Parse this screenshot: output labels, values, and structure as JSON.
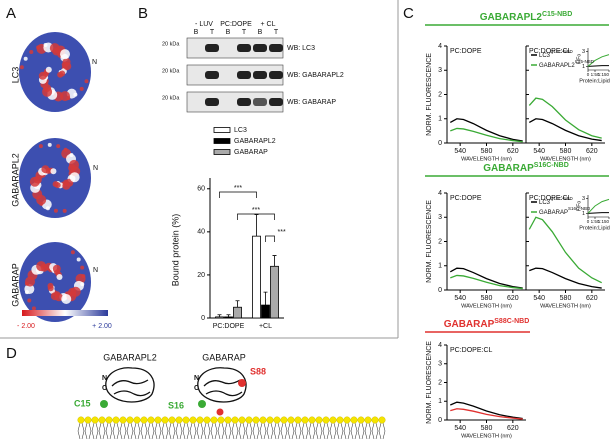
{
  "panel_a": {
    "label": "A",
    "proteins": [
      "LC3",
      "GABARAPL2",
      "GABARAP"
    ],
    "n_labels": [
      "N",
      "N",
      "N"
    ],
    "scale": [
      "- 2.00",
      "+ 2.00"
    ]
  },
  "panel_b": {
    "label": "B",
    "blot": {
      "conditions": [
        "- LUV",
        "PC:DOPE",
        "+ CL"
      ],
      "lanes": [
        "B",
        "T",
        "B",
        "T",
        "B",
        "T"
      ],
      "markers": [
        "20 kDa",
        "20 kDa",
        "20 kDa"
      ],
      "rows": [
        "WB: LC3",
        "WB: GABARAPL2",
        "WB: GABARAP"
      ]
    },
    "chart": {
      "type": "bar",
      "ylabel": "Bound protein (%)",
      "categories": [
        "PC:DOPE",
        "+CL"
      ],
      "series": [
        {
          "name": "LC3",
          "color": "#ffffff",
          "values": [
            0.5,
            38
          ],
          "errors": [
            1,
            10
          ]
        },
        {
          "name": "GABARAPL2",
          "color": "#000000",
          "values": [
            0.5,
            6
          ],
          "errors": [
            1,
            6
          ]
        },
        {
          "name": "GABARAP",
          "color": "#aaaaaa",
          "values": [
            5,
            24
          ],
          "errors": [
            3,
            5
          ]
        }
      ],
      "ylim": [
        0,
        65
      ],
      "yticks": [
        0,
        20,
        40,
        60
      ],
      "significance": [
        "***",
        "***",
        "***"
      ]
    }
  },
  "panel_c": {
    "label": "C",
    "ylabel": "NORM. FLUORESCENCE",
    "xlabel": "WAVELENGTH (nm)",
    "x": [
      525,
      535,
      545,
      560,
      580,
      600,
      620,
      635
    ],
    "xlim": [
      520,
      640
    ],
    "xticks": [
      540,
      580,
      620
    ],
    "ylim": [
      0,
      4
    ],
    "yticks": [
      0,
      1,
      2,
      3,
      4
    ],
    "rows": [
      {
        "title": {
          "name": "GABARAPL2",
          "sup": "C15-NBD"
        },
        "color": "#3aaa35",
        "plots": [
          {
            "condition": "PC:DOPE",
            "series": [
              {
                "color": "#000000",
                "values": [
                  0.85,
                  1.0,
                  0.97,
                  0.8,
                  0.52,
                  0.3,
                  0.15,
                  0.08
                ]
              },
              {
                "color": "#3aaa35",
                "values": [
                  0.5,
                  0.6,
                  0.58,
                  0.48,
                  0.32,
                  0.18,
                  0.1,
                  0.05
                ]
              }
            ]
          },
          {
            "condition": "PC:DOPE:CL",
            "series": [
              {
                "color": "#000000",
                "values": [
                  0.85,
                  1.0,
                  0.97,
                  0.8,
                  0.52,
                  0.3,
                  0.16,
                  0.1
                ]
              },
              {
                "color": "#3aaa35",
                "values": [
                  1.55,
                  1.85,
                  1.8,
                  1.5,
                  0.95,
                  0.55,
                  0.3,
                  0.2
                ]
              }
            ]
          }
        ],
        "inset": {
          "ylabel": "F/Fo",
          "xlabel": "Protein:Lipid",
          "x": [
            0,
            50,
            100,
            150
          ],
          "xlim": [
            0,
            150
          ],
          "xticks": [
            {
              "value": 0,
              "label": "0"
            },
            {
              "value": 50,
              "label": "1:50"
            },
            {
              "value": 150,
              "label": "1:150"
            }
          ],
          "ylim": [
            0.5,
            3.5
          ],
          "yticks": [
            1,
            3
          ],
          "series": [
            {
              "name": "LC3",
              "sup": "Q15C-NBD",
              "color": "#000000",
              "values": [
                1,
                1.05,
                1.1,
                1.1
              ]
            },
            {
              "name": "GABARAPL2",
              "sup": "C15-NBD",
              "color": "#3aaa35",
              "values": [
                1,
                1.8,
                2.3,
                2.6
              ]
            }
          ]
        }
      },
      {
        "title": {
          "name": "GABARAP",
          "sup": "S16C-NBD"
        },
        "color": "#3aaa35",
        "plots": [
          {
            "condition": "PC:DOPE",
            "series": [
              {
                "color": "#000000",
                "values": [
                  0.75,
                  0.9,
                  0.88,
                  0.72,
                  0.47,
                  0.27,
                  0.14,
                  0.08
                ]
              },
              {
                "color": "#3aaa35",
                "values": [
                  0.5,
                  0.6,
                  0.58,
                  0.48,
                  0.32,
                  0.18,
                  0.1,
                  0.06
                ]
              }
            ]
          },
          {
            "condition": "PC:DOPE:CL",
            "series": [
              {
                "color": "#000000",
                "values": [
                  0.8,
                  0.9,
                  0.88,
                  0.72,
                  0.47,
                  0.27,
                  0.14,
                  0.08
                ]
              },
              {
                "color": "#3aaa35",
                "values": [
                  2.5,
                  3.0,
                  2.9,
                  2.4,
                  1.55,
                  0.9,
                  0.5,
                  0.3
                ]
              }
            ]
          }
        ],
        "inset": {
          "ylabel": "F/Fo",
          "xlabel": "Protein:Lipid",
          "x": [
            0,
            50,
            100,
            150
          ],
          "xlim": [
            0,
            150
          ],
          "xticks": [
            {
              "value": 0,
              "label": "0"
            },
            {
              "value": 50,
              "label": "1:50"
            },
            {
              "value": 150,
              "label": "1:150"
            }
          ],
          "ylim": [
            0.5,
            3.5
          ],
          "yticks": [
            1,
            3
          ],
          "series": [
            {
              "name": "LC3",
              "sup": "Q15C-NBD",
              "color": "#000000",
              "values": [
                1,
                1.05,
                1.1,
                1.1
              ]
            },
            {
              "name": "GABARAP",
              "sup": "S16C-NBD",
              "color": "#3aaa35",
              "values": [
                1,
                2.0,
                2.6,
                2.9
              ]
            }
          ]
        }
      },
      {
        "title": {
          "name": "GABARAP",
          "sup": "S88C-NBD"
        },
        "color": "#e0312f",
        "plots": [
          {
            "condition": "PC:DOPE:CL",
            "series": [
              {
                "color": "#000000",
                "values": [
                  0.8,
                  0.95,
                  0.9,
                  0.74,
                  0.48,
                  0.28,
                  0.15,
                  0.08
                ]
              },
              {
                "color": "#e0312f",
                "values": [
                  0.5,
                  0.6,
                  0.57,
                  0.47,
                  0.3,
                  0.18,
                  0.1,
                  0.05
                ]
              }
            ]
          }
        ]
      }
    ]
  },
  "panel_d": {
    "label": "D",
    "proteins": [
      "GABARAPL2",
      "GABARAP"
    ],
    "termini": [
      "N",
      "C",
      "N",
      "C"
    ],
    "residues": [
      "C15",
      "S16",
      "S88"
    ]
  }
}
